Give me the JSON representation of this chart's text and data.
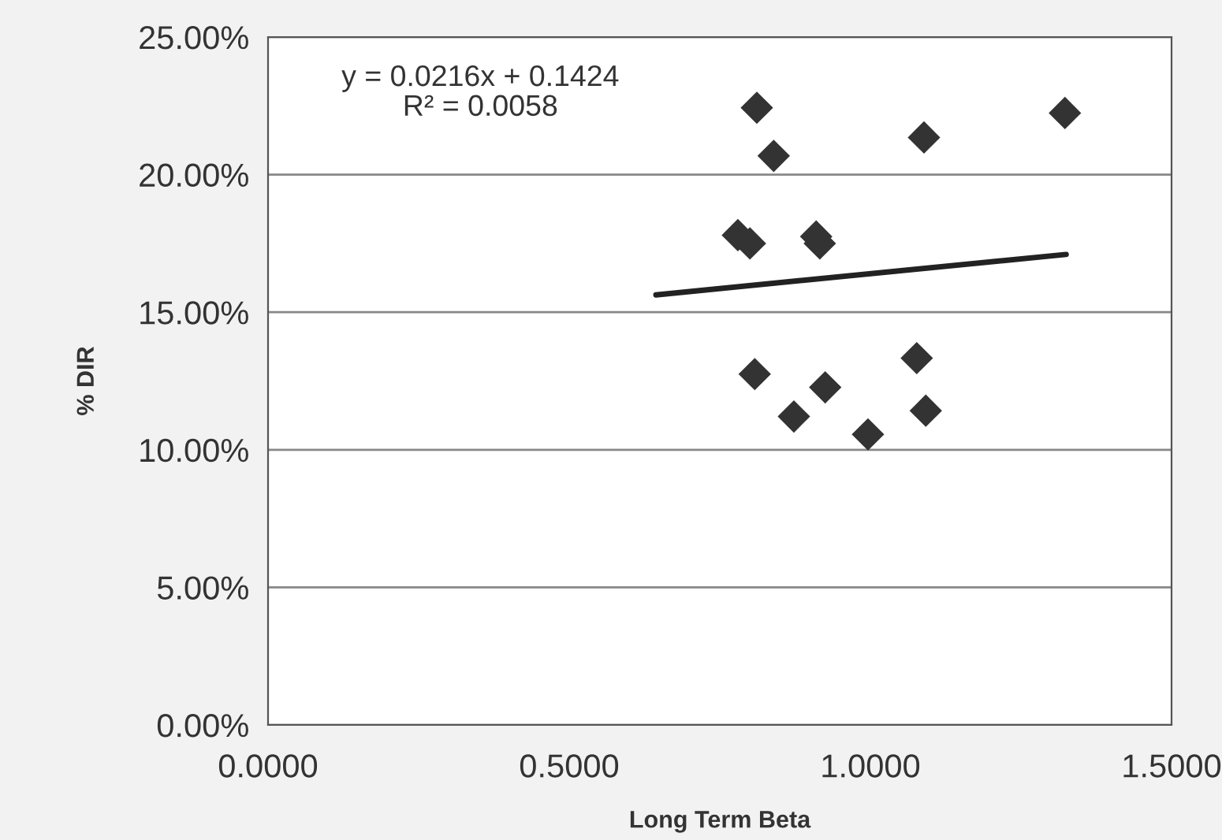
{
  "chart_data": {
    "type": "scatter",
    "xlabel": "Long Term Beta",
    "ylabel": "% DIR",
    "series": [
      {
        "color": "#333333",
        "marker": "diamond",
        "x": [
          0.8115,
          0.8395,
          1.089,
          1.323,
          0.78,
          0.8,
          0.91,
          0.916,
          0.808,
          0.925,
          0.873,
          0.996,
          1.077,
          1.092
        ],
        "values": [
          22.43,
          20.68,
          21.35,
          22.24,
          17.8,
          17.5,
          17.75,
          17.5,
          12.75,
          12.27,
          11.21,
          10.56,
          13.33,
          11.42
        ]
      },
      {
        "type": "line",
        "color": "#222222",
        "marker": "none",
        "line_style": "solid",
        "x": [
          0.644,
          1.325
        ],
        "values": [
          15.63,
          17.1
        ]
      }
    ],
    "annotations": [
      "y = 0.0216x + 0.1424",
      "R² = 0.0058"
    ],
    "xlim": [
      0,
      1.5
    ],
    "xticks": [
      {
        "value": 0,
        "label": "0.0000"
      },
      {
        "value": 0.5,
        "label": "0.5000"
      },
      {
        "value": 1.0,
        "label": "1.0000"
      },
      {
        "value": 1.5,
        "label": "1.5000"
      }
    ],
    "ylim": [
      0,
      25
    ],
    "yticks": [
      {
        "value": 0,
        "label": "0.00%"
      },
      {
        "value": 5,
        "label": "5.00%"
      },
      {
        "value": 10,
        "label": "10.00%"
      },
      {
        "value": 15,
        "label": "15.00%"
      },
      {
        "value": 20,
        "label": "20.00%"
      },
      {
        "value": 25,
        "label": "25.00%"
      }
    ],
    "grid": "y",
    "legend": false
  }
}
